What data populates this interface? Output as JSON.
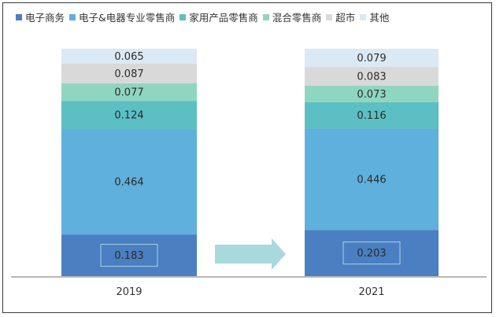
{
  "chart_data": {
    "type": "bar",
    "stacked": true,
    "normalized": true,
    "categories": [
      "2019",
      "2021"
    ],
    "series": [
      {
        "name": "电子商务",
        "values": [
          0.183,
          0.203
        ],
        "color": "#4a7fc1",
        "boxed_label": true
      },
      {
        "name": "电子&电器专业零售商",
        "values": [
          0.464,
          0.446
        ],
        "color": "#5fb0dc"
      },
      {
        "name": "家用产品零售商",
        "values": [
          0.124,
          0.116
        ],
        "color": "#5cbfc3"
      },
      {
        "name": "混合零售商",
        "values": [
          0.077,
          0.073
        ],
        "color": "#8fd6c0"
      },
      {
        "name": "超市",
        "values": [
          0.087,
          0.083
        ],
        "color": "#d9d9d9"
      },
      {
        "name": "其他",
        "values": [
          0.065,
          0.079
        ],
        "color": "#dbe9f4"
      }
    ],
    "legend_position": "top",
    "arrow_between_bars": true,
    "arrow_color": "#a8d9dc",
    "title": "",
    "xlabel": "",
    "ylabel": ""
  }
}
